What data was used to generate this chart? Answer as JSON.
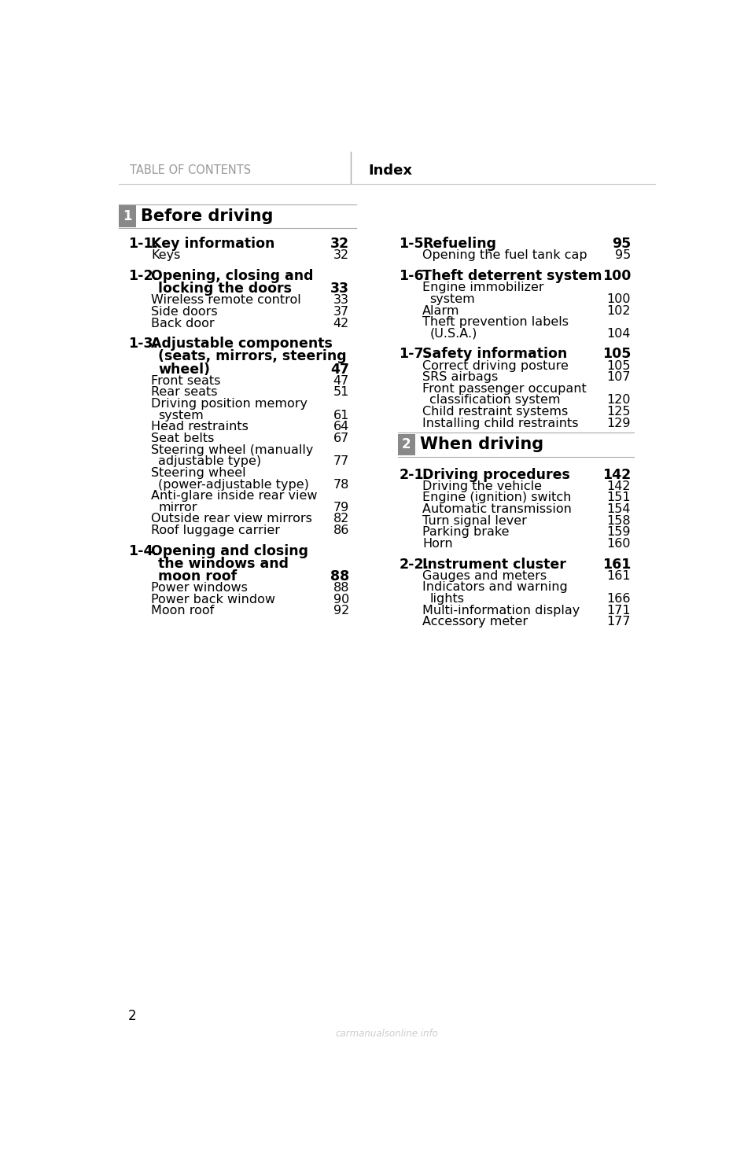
{
  "bg_color": "#ffffff",
  "header_text_left": "TABLE OF CONTENTS",
  "header_text_right": "Index",
  "page_number": "2",
  "section1_number": "1",
  "section1_title": "Before driving",
  "section2_number": "2",
  "section2_title": "When driving",
  "box_color": "#888888",
  "left_column": [
    {
      "type": "section_header",
      "num": "1-1.",
      "title": "Key information",
      "dots": true,
      "page": "32"
    },
    {
      "type": "sub",
      "title": "Keys",
      "dots": true,
      "page": "32"
    },
    {
      "type": "spacer"
    },
    {
      "type": "section_header",
      "num": "1-2.",
      "title": "Opening, closing and",
      "dots": false,
      "page": ""
    },
    {
      "type": "section_header2",
      "title": "locking the doors",
      "dots": true,
      "page": "33"
    },
    {
      "type": "sub",
      "title": "Wireless remote control",
      "dots": true,
      "page": "33"
    },
    {
      "type": "sub",
      "title": "Side doors",
      "dots": true,
      "page": "37"
    },
    {
      "type": "sub",
      "title": "Back door",
      "dots": true,
      "page": "42"
    },
    {
      "type": "spacer"
    },
    {
      "type": "section_header",
      "num": "1-3.",
      "title": "Adjustable components",
      "dots": false,
      "page": ""
    },
    {
      "type": "section_header2",
      "title": "(seats, mirrors, steering",
      "dots": false,
      "page": ""
    },
    {
      "type": "section_header2",
      "title": "wheel)",
      "dots": true,
      "page": "47"
    },
    {
      "type": "sub",
      "title": "Front seats",
      "dots": true,
      "page": "47"
    },
    {
      "type": "sub",
      "title": "Rear seats",
      "dots": true,
      "page": "51"
    },
    {
      "type": "sub2",
      "title": "Driving position memory",
      "dots": false,
      "page": ""
    },
    {
      "type": "sub2b",
      "title": "system",
      "dots": true,
      "page": "61"
    },
    {
      "type": "sub",
      "title": "Head restraints",
      "dots": true,
      "page": "64"
    },
    {
      "type": "sub",
      "title": "Seat belts",
      "dots": true,
      "page": "67"
    },
    {
      "type": "sub2",
      "title": "Steering wheel (manually",
      "dots": false,
      "page": ""
    },
    {
      "type": "sub2b",
      "title": "adjustable type)",
      "dots": true,
      "page": "77"
    },
    {
      "type": "sub2",
      "title": "Steering wheel",
      "dots": false,
      "page": ""
    },
    {
      "type": "sub2b",
      "title": "(power-adjustable type)",
      "dots": true,
      "page": "78"
    },
    {
      "type": "sub2",
      "title": "Anti-glare inside rear view",
      "dots": false,
      "page": ""
    },
    {
      "type": "sub2b",
      "title": "mirror",
      "dots": true,
      "page": "79"
    },
    {
      "type": "sub",
      "title": "Outside rear view mirrors",
      "dots": true,
      "page": "82"
    },
    {
      "type": "sub",
      "title": "Roof luggage carrier",
      "dots": true,
      "page": "86"
    },
    {
      "type": "spacer"
    },
    {
      "type": "section_header",
      "num": "1-4.",
      "title": "Opening and closing",
      "dots": false,
      "page": ""
    },
    {
      "type": "section_header2",
      "title": "the windows and",
      "dots": false,
      "page": ""
    },
    {
      "type": "section_header2",
      "title": "moon roof",
      "dots": true,
      "page": "88"
    },
    {
      "type": "sub",
      "title": "Power windows",
      "dots": true,
      "page": "88"
    },
    {
      "type": "sub",
      "title": "Power back window",
      "dots": true,
      "page": "90"
    },
    {
      "type": "sub",
      "title": "Moon roof",
      "dots": true,
      "page": "92"
    }
  ],
  "right_column": [
    {
      "type": "section_header",
      "num": "1-5.",
      "title": "Refueling",
      "dots": true,
      "page": "95"
    },
    {
      "type": "sub",
      "title": "Opening the fuel tank cap",
      "dots": true,
      "page": "95"
    },
    {
      "type": "spacer"
    },
    {
      "type": "section_header",
      "num": "1-6.",
      "title": "Theft deterrent system",
      "dots": true,
      "page": "100"
    },
    {
      "type": "sub2",
      "title": "Engine immobilizer",
      "dots": false,
      "page": ""
    },
    {
      "type": "sub2b",
      "title": "system",
      "dots": true,
      "page": "100"
    },
    {
      "type": "sub",
      "title": "Alarm",
      "dots": true,
      "page": "102"
    },
    {
      "type": "sub2",
      "title": "Theft prevention labels",
      "dots": false,
      "page": ""
    },
    {
      "type": "sub2b",
      "title": "(U.S.A.)",
      "dots": true,
      "page": "104"
    },
    {
      "type": "spacer"
    },
    {
      "type": "section_header",
      "num": "1-7.",
      "title": "Safety information",
      "dots": true,
      "page": "105"
    },
    {
      "type": "sub",
      "title": "Correct driving posture",
      "dots": true,
      "page": "105"
    },
    {
      "type": "sub",
      "title": "SRS airbags",
      "dots": true,
      "page": "107"
    },
    {
      "type": "sub2",
      "title": "Front passenger occupant",
      "dots": false,
      "page": ""
    },
    {
      "type": "sub2b",
      "title": "classification system",
      "dots": true,
      "page": "120"
    },
    {
      "type": "sub",
      "title": "Child restraint systems",
      "dots": true,
      "page": "125"
    },
    {
      "type": "sub",
      "title": "Installing child restraints",
      "dots": true,
      "page": "129"
    },
    {
      "type": "section2_break"
    },
    {
      "type": "section_header",
      "num": "2-1.",
      "title": "Driving procedures",
      "dots": true,
      "page": "142"
    },
    {
      "type": "sub",
      "title": "Driving the vehicle",
      "dots": true,
      "page": "142"
    },
    {
      "type": "sub",
      "title": "Engine (ignition) switch",
      "dots": true,
      "page": "151"
    },
    {
      "type": "sub",
      "title": "Automatic transmission",
      "dots": true,
      "page": "154"
    },
    {
      "type": "sub",
      "title": "Turn signal lever",
      "dots": true,
      "page": "158"
    },
    {
      "type": "sub",
      "title": "Parking brake",
      "dots": true,
      "page": "159"
    },
    {
      "type": "sub",
      "title": "Horn",
      "dots": true,
      "page": "160"
    },
    {
      "type": "spacer"
    },
    {
      "type": "section_header",
      "num": "2-2.",
      "title": "Instrument cluster",
      "dots": true,
      "page": "161"
    },
    {
      "type": "sub",
      "title": "Gauges and meters",
      "dots": true,
      "page": "161"
    },
    {
      "type": "sub2",
      "title": "Indicators and warning",
      "dots": false,
      "page": ""
    },
    {
      "type": "sub2b",
      "title": "lights",
      "dots": true,
      "page": "166"
    },
    {
      "type": "sub",
      "title": "Multi-information display",
      "dots": true,
      "page": "171"
    },
    {
      "type": "sub",
      "title": "Accessory meter",
      "dots": true,
      "page": "177"
    }
  ]
}
